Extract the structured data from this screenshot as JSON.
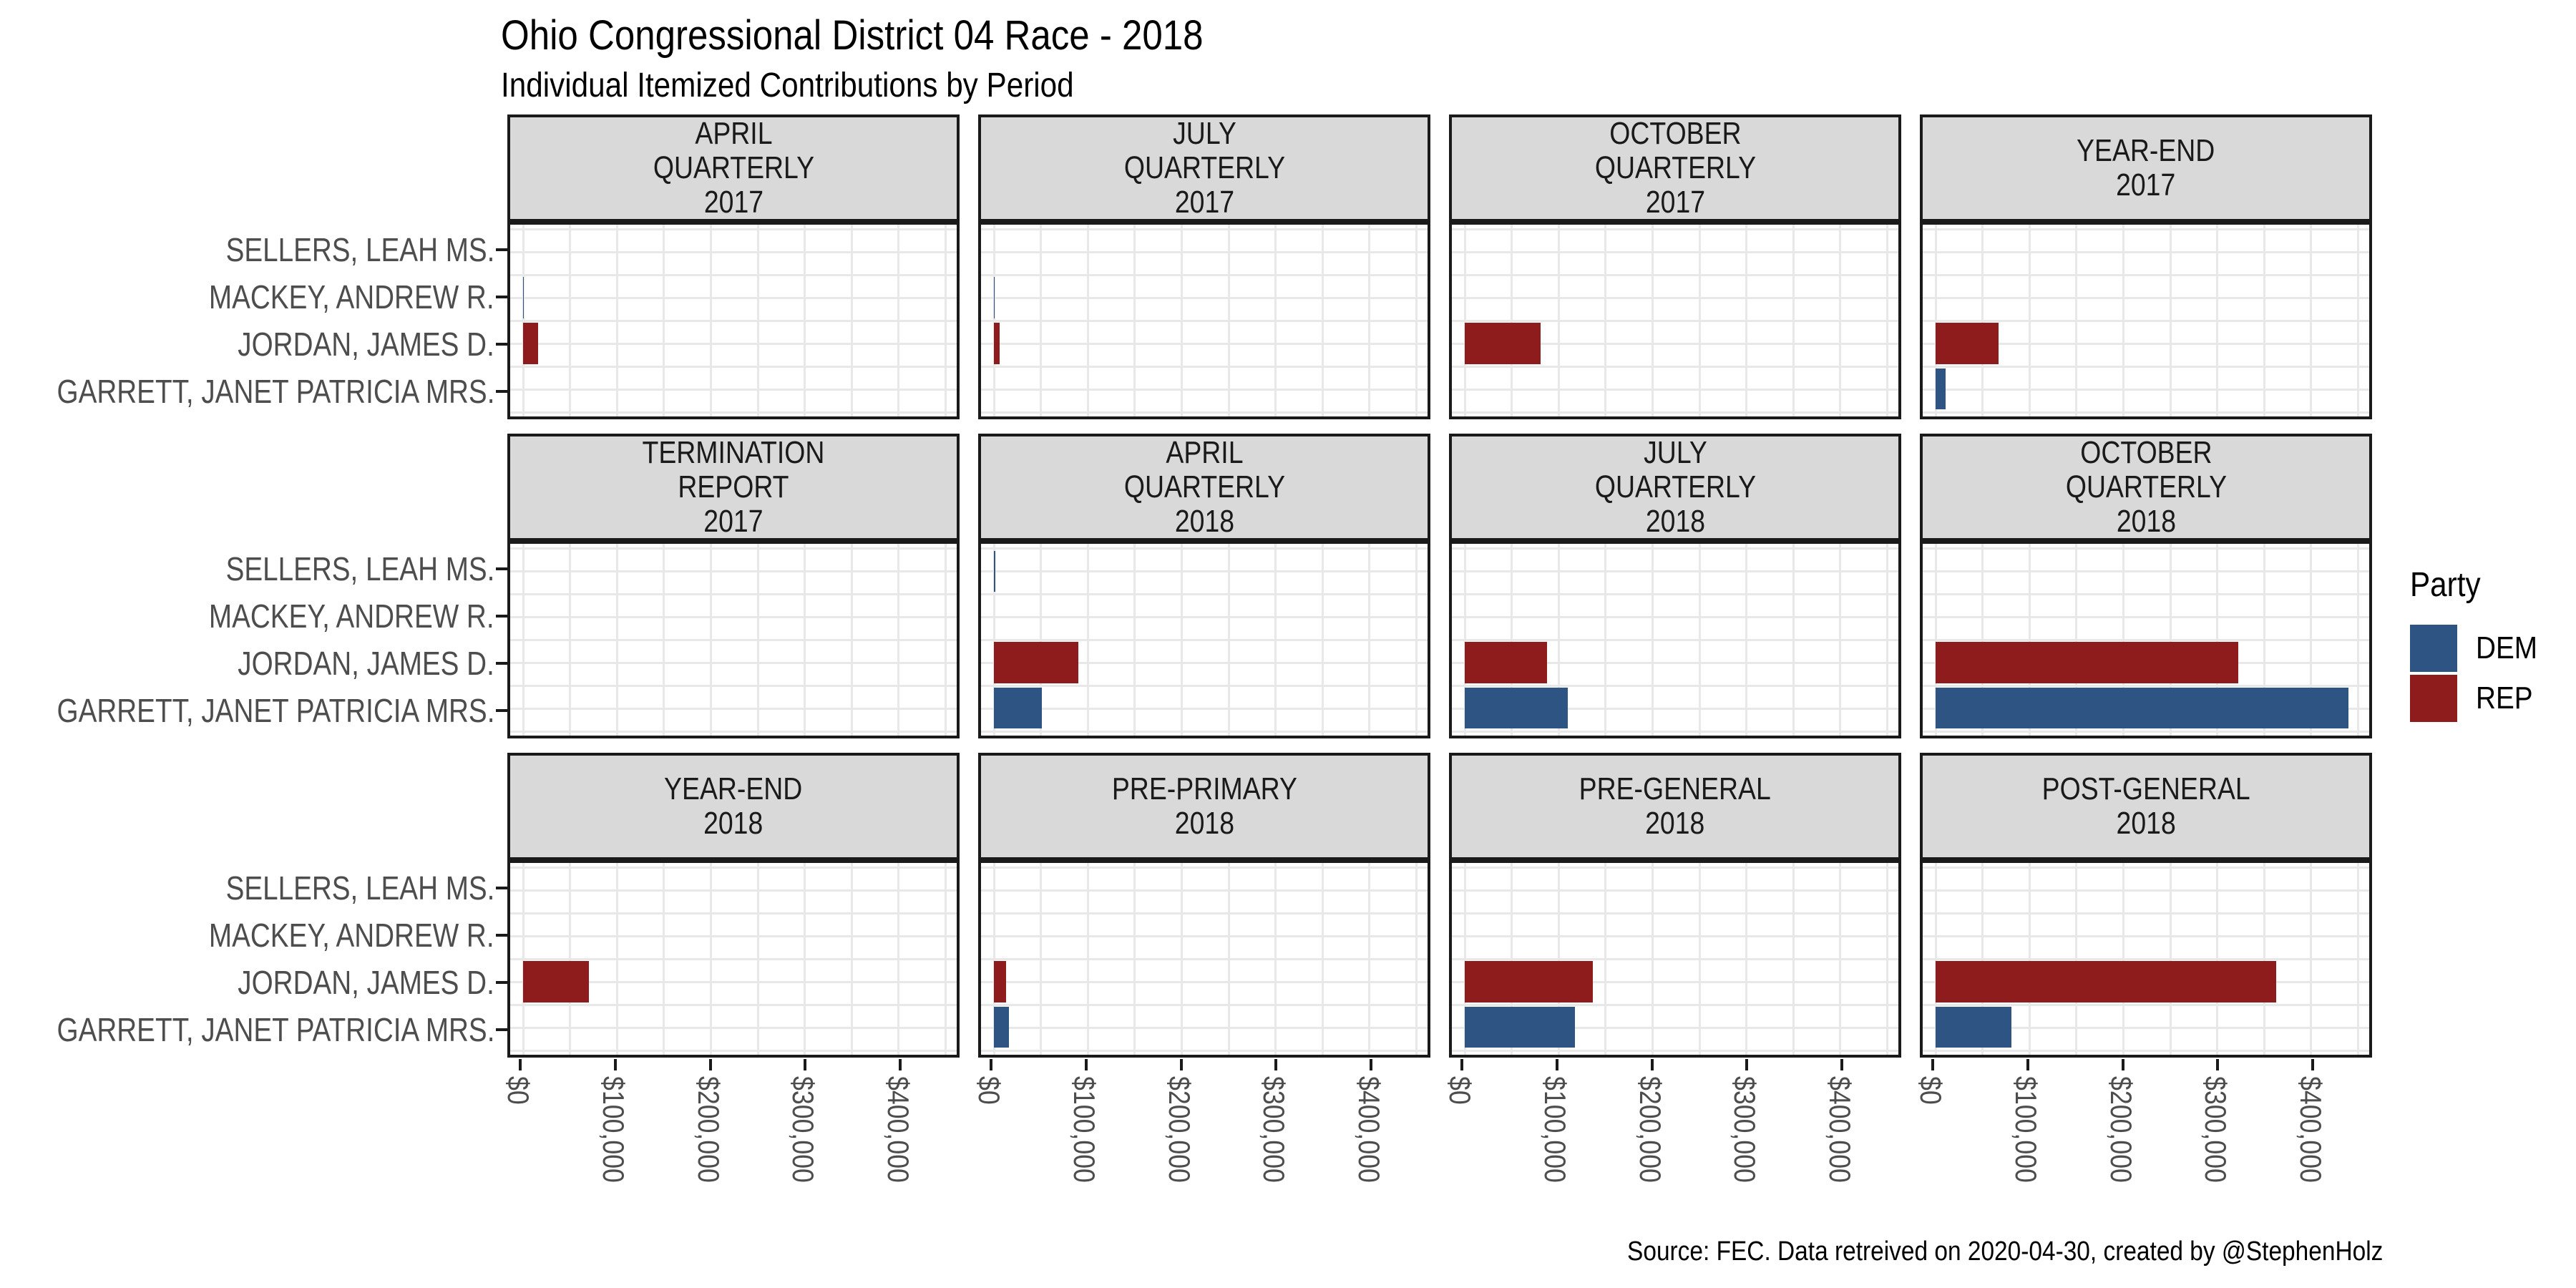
{
  "title": "Ohio Congressional District 04 Race - 2018",
  "subtitle": "Individual Itemized Contributions by Period",
  "caption": "Source: FEC. Data retreived on 2020-04-30, created by @StephenHolz",
  "legend": {
    "title": "Party",
    "entries": [
      {
        "label": "DEM",
        "color": "#2E5484"
      },
      {
        "label": "REP",
        "color": "#8E1C1D"
      }
    ]
  },
  "colors": {
    "dem_blue": "#2E5484",
    "rep_red": "#8E1C1D",
    "strip_bg": "#D9D9D9",
    "panel_border": "#1A1A1A",
    "gridline": "#E8E8E8",
    "axis_text": "#4D4D4D"
  },
  "chart_data": {
    "type": "bar",
    "orientation": "horizontal",
    "grid": "on",
    "legend_position": "right",
    "xlabel": "",
    "ylabel": "",
    "x_tick_labels": [
      "$0",
      "$100,000",
      "$200,000",
      "$300,000",
      "$400,000"
    ],
    "x_tick_values": [
      0,
      100000,
      200000,
      300000,
      400000
    ],
    "x_minor_step": 50000,
    "xlim": [
      0,
      460000
    ],
    "candidates": [
      "SELLERS, LEAH MS.",
      "MACKEY, ANDREW R.",
      "JORDAN, JAMES D.",
      "GARRETT, JANET PATRICIA MRS."
    ],
    "facets": [
      {
        "title": "APRIL QUARTERLY 2017",
        "lines": [
          "APRIL",
          "QUARTERLY",
          "2017"
        ],
        "bars": [
          {
            "candidate": "MACKEY, ANDREW R.",
            "row": 1,
            "party": "DEM",
            "value": 1000
          },
          {
            "candidate": "JORDAN, JAMES D.",
            "row": 2,
            "party": "REP",
            "value": 16500
          }
        ]
      },
      {
        "title": "JULY QUARTERLY 2017",
        "lines": [
          "JULY",
          "QUARTERLY",
          "2017"
        ],
        "bars": [
          {
            "candidate": "MACKEY, ANDREW R.",
            "row": 1,
            "party": "DEM",
            "value": 1000
          },
          {
            "candidate": "JORDAN, JAMES D.",
            "row": 2,
            "party": "REP",
            "value": 6500
          }
        ]
      },
      {
        "title": "OCTOBER QUARTERLY 2017",
        "lines": [
          "OCTOBER",
          "QUARTERLY",
          "2017"
        ],
        "bars": [
          {
            "candidate": "JORDAN, JAMES D.",
            "row": 2,
            "party": "REP",
            "value": 81000
          }
        ]
      },
      {
        "title": "YEAR-END 2017",
        "lines": [
          "YEAR-END",
          "2017"
        ],
        "bars": [
          {
            "candidate": "JORDAN, JAMES D.",
            "row": 2,
            "party": "REP",
            "value": 67500
          },
          {
            "candidate": "GARRETT, JANET PATRICIA MRS.",
            "row": 3,
            "party": "DEM",
            "value": 10500
          }
        ]
      },
      {
        "title": "TERMINATION REPORT 2017",
        "lines": [
          "TERMINATION",
          "REPORT",
          "2017"
        ],
        "bars": []
      },
      {
        "title": "APRIL QUARTERLY 2018",
        "lines": [
          "APRIL",
          "QUARTERLY",
          "2018"
        ],
        "bars": [
          {
            "candidate": "SELLERS, LEAH MS.",
            "row": 0,
            "party": "DEM",
            "value": 1500
          },
          {
            "candidate": "JORDAN, JAMES D.",
            "row": 2,
            "party": "REP",
            "value": 90000
          },
          {
            "candidate": "GARRETT, JANET PATRICIA MRS.",
            "row": 3,
            "party": "DEM",
            "value": 51000
          }
        ]
      },
      {
        "title": "JULY QUARTERLY 2018",
        "lines": [
          "JULY",
          "QUARTERLY",
          "2018"
        ],
        "bars": [
          {
            "candidate": "JORDAN, JAMES D.",
            "row": 2,
            "party": "REP",
            "value": 88000
          },
          {
            "candidate": "GARRETT, JANET PATRICIA MRS.",
            "row": 3,
            "party": "DEM",
            "value": 110000
          }
        ]
      },
      {
        "title": "OCTOBER QUARTERLY 2018",
        "lines": [
          "OCTOBER",
          "QUARTERLY",
          "2018"
        ],
        "bars": [
          {
            "candidate": "JORDAN, JAMES D.",
            "row": 2,
            "party": "REP",
            "value": 323000
          },
          {
            "candidate": "GARRETT, JANET PATRICIA MRS.",
            "row": 3,
            "party": "DEM",
            "value": 440000
          }
        ]
      },
      {
        "title": "YEAR-END 2018",
        "lines": [
          "YEAR-END",
          "2018"
        ],
        "bars": [
          {
            "candidate": "JORDAN, JAMES D.",
            "row": 2,
            "party": "REP",
            "value": 70000
          }
        ]
      },
      {
        "title": "PRE-PRIMARY 2018",
        "lines": [
          "PRE-PRIMARY",
          "2018"
        ],
        "bars": [
          {
            "candidate": "JORDAN, JAMES D.",
            "row": 2,
            "party": "REP",
            "value": 13500
          },
          {
            "candidate": "GARRETT, JANET PATRICIA MRS.",
            "row": 3,
            "party": "DEM",
            "value": 16500
          }
        ]
      },
      {
        "title": "PRE-GENERAL 2018",
        "lines": [
          "PRE-GENERAL",
          "2018"
        ],
        "bars": [
          {
            "candidate": "JORDAN, JAMES D.",
            "row": 2,
            "party": "REP",
            "value": 137000
          },
          {
            "candidate": "GARRETT, JANET PATRICIA MRS.",
            "row": 3,
            "party": "DEM",
            "value": 118000
          }
        ]
      },
      {
        "title": "POST-GENERAL 2018",
        "lines": [
          "POST-GENERAL",
          "2018"
        ],
        "bars": [
          {
            "candidate": "JORDAN, JAMES D.",
            "row": 2,
            "party": "REP",
            "value": 363000
          },
          {
            "candidate": "GARRETT, JANET PATRICIA MRS.",
            "row": 3,
            "party": "DEM",
            "value": 81000
          }
        ]
      }
    ]
  }
}
